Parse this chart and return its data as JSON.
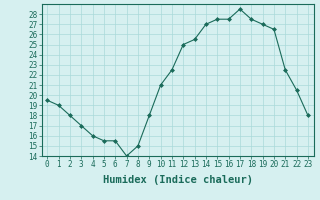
{
  "x": [
    0,
    1,
    2,
    3,
    4,
    5,
    6,
    7,
    8,
    9,
    10,
    11,
    12,
    13,
    14,
    15,
    16,
    17,
    18,
    19,
    20,
    21,
    22,
    23
  ],
  "y": [
    19.5,
    19.0,
    18.0,
    17.0,
    16.0,
    15.5,
    15.5,
    14.0,
    15.0,
    18.0,
    21.0,
    22.5,
    25.0,
    25.5,
    27.0,
    27.5,
    27.5,
    28.5,
    27.5,
    27.0,
    26.5,
    22.5,
    20.5,
    18.0
  ],
  "line_color": "#1a6b5a",
  "marker": "D",
  "marker_size": 2.0,
  "bg_color": "#d6f0f0",
  "grid_color": "#aadada",
  "xlabel": "Humidex (Indice chaleur)",
  "xlim": [
    -0.5,
    23.5
  ],
  "ylim": [
    14,
    29
  ],
  "yticks": [
    14,
    15,
    16,
    17,
    18,
    19,
    20,
    21,
    22,
    23,
    24,
    25,
    26,
    27,
    28
  ],
  "xticks": [
    0,
    1,
    2,
    3,
    4,
    5,
    6,
    7,
    8,
    9,
    10,
    11,
    12,
    13,
    14,
    15,
    16,
    17,
    18,
    19,
    20,
    21,
    22,
    23
  ],
  "tick_fontsize": 5.5,
  "xlabel_fontsize": 7.5,
  "spine_color": "#1a6b5a"
}
